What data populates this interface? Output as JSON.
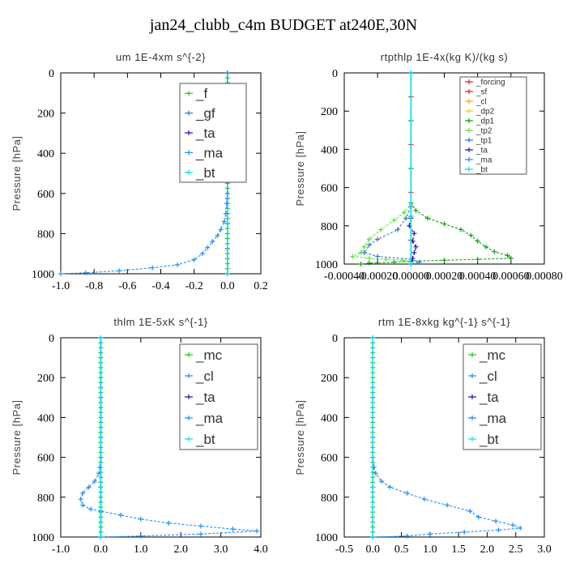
{
  "title": "jan24_clubb_c4m  BUDGET at240E,30N",
  "colors": {
    "green": "#22cc22",
    "blue": "#1e90ff",
    "darkblue": "#1c1cc8",
    "cyan": "#00e5ee",
    "red": "#e8231a",
    "orange": "#ffa500",
    "yellow": "#e6d020",
    "forestgreen": "#14a014",
    "lime": "#66dd44",
    "steel": "#3a78c8"
  },
  "chart_data": [
    {
      "type": "line",
      "title": "um   1E-4xm s^{-2}",
      "ylabel": "Pressure [hPa]",
      "xlim": [
        -1.0,
        0.2
      ],
      "ylim": [
        1000,
        0
      ],
      "xticks": [
        "-1.0",
        "-0.8",
        "-0.6",
        "-0.4",
        "-0.2",
        "0.0",
        "0.2"
      ],
      "yticks": [
        "0",
        "200",
        "400",
        "600",
        "800",
        "1000"
      ],
      "legend": {
        "position": "top-right",
        "size": "large"
      },
      "series": [
        {
          "name": "_f",
          "color_key": "green",
          "values": [
            [
              0.0,
              0
            ],
            [
              0.0,
              100
            ],
            [
              0.0,
              200
            ],
            [
              0.0,
              300
            ],
            [
              0.0,
              400
            ],
            [
              0.0,
              500
            ],
            [
              0.0,
              600
            ],
            [
              0.0,
              700
            ],
            [
              0.0,
              800
            ],
            [
              0.0,
              900
            ],
            [
              0.0,
              1000
            ]
          ]
        },
        {
          "name": "_gf",
          "color_key": "steel",
          "values": [
            [
              0.0,
              0
            ],
            [
              0.0,
              500
            ],
            [
              0.0,
              1000
            ]
          ]
        },
        {
          "name": "_ta",
          "color_key": "darkblue",
          "values": [
            [
              0.0,
              0
            ],
            [
              0.0,
              1000
            ]
          ]
        },
        {
          "name": "_ma",
          "color_key": "blue",
          "values": [
            [
              0.0,
              0
            ],
            [
              0.0,
              1000
            ]
          ]
        },
        {
          "name": "_bt",
          "color_key": "cyan",
          "values": [
            [
              0.0,
              0
            ],
            [
              0.0,
              1000
            ]
          ]
        },
        {
          "name": "",
          "color_key": "blue",
          "values": [
            [
              0.0,
              0
            ],
            [
              0.0,
              100
            ],
            [
              0.0,
              200
            ],
            [
              0.0,
              300
            ],
            [
              0.0,
              400
            ],
            [
              0.0,
              500
            ],
            [
              0.0,
              600
            ],
            [
              -0.005,
              650
            ],
            [
              -0.01,
              700
            ],
            [
              -0.02,
              740
            ],
            [
              -0.04,
              780
            ],
            [
              -0.06,
              810
            ],
            [
              -0.09,
              840
            ],
            [
              -0.12,
              870
            ],
            [
              -0.15,
              900
            ],
            [
              -0.2,
              930
            ],
            [
              -0.3,
              955
            ],
            [
              -0.45,
              970
            ],
            [
              -0.65,
              985
            ],
            [
              -0.85,
              995
            ],
            [
              -1.0,
              1000
            ]
          ]
        }
      ]
    },
    {
      "type": "line",
      "title": "rtpthlp   1E-4x(kg K)/(kg s)",
      "ylabel": "Pressure [hPa]",
      "xlim": [
        -0.0004,
        0.0008
      ],
      "ylim": [
        1000,
        0
      ],
      "xticks": [
        "-0.00040",
        "-0.00020",
        "0.00000",
        "0.00020",
        "0.00040",
        "0.00060",
        "0.00080"
      ],
      "yticks": [
        "0",
        "200",
        "400",
        "600",
        "800",
        "1000"
      ],
      "legend": {
        "position": "top-right",
        "size": "small"
      },
      "series": [
        {
          "name": "_forcing",
          "color_key": "red",
          "values": [
            [
              0.0,
              0
            ],
            [
              0.0,
              500
            ],
            [
              0.0,
              1000
            ]
          ]
        },
        {
          "name": "_sf",
          "color_key": "red",
          "values": [
            [
              0.0,
              0
            ],
            [
              0.0,
              1000
            ]
          ]
        },
        {
          "name": "_cl",
          "color_key": "orange",
          "values": [
            [
              0.0,
              0
            ],
            [
              0.0,
              1000
            ]
          ]
        },
        {
          "name": "_dp2",
          "color_key": "yellow",
          "values": [
            [
              0.0,
              0
            ],
            [
              0.0,
              1000
            ]
          ]
        },
        {
          "name": "_dp1",
          "color_key": "forestgreen",
          "values": [
            [
              0.0,
              0
            ],
            [
              0.0,
              680
            ],
            [
              3e-05,
              720
            ],
            [
              0.0001,
              760
            ],
            [
              0.0002,
              790
            ],
            [
              0.0003,
              820
            ],
            [
              0.00036,
              850
            ],
            [
              0.0004,
              880
            ],
            [
              0.00045,
              910
            ],
            [
              0.0005,
              935
            ],
            [
              0.00058,
              955
            ],
            [
              0.0006,
              970
            ],
            [
              0.0004,
              975
            ],
            [
              0.0002,
              980
            ],
            [
              0.0,
              985
            ],
            [
              -0.0001,
              990
            ],
            [
              -0.00025,
              995
            ],
            [
              -0.0003,
              1000
            ]
          ]
        },
        {
          "name": "_tp2",
          "color_key": "lime",
          "values": [
            [
              0.0,
              0
            ],
            [
              0.0,
              690
            ],
            [
              -4e-05,
              730
            ],
            [
              -0.0001,
              770
            ],
            [
              -0.00018,
              820
            ],
            [
              -0.00025,
              870
            ],
            [
              -0.00028,
              910
            ],
            [
              -0.0003,
              940
            ],
            [
              -0.00035,
              960
            ],
            [
              -0.00025,
              970
            ],
            [
              -0.00015,
              975
            ],
            [
              -5e-05,
              980
            ],
            [
              0.0,
              990
            ],
            [
              0.0,
              1000
            ]
          ]
        },
        {
          "name": "_tp1",
          "color_key": "steel",
          "values": [
            [
              0.0,
              0
            ],
            [
              0.0,
              700
            ],
            [
              -3e-05,
              760
            ],
            [
              -8e-05,
              820
            ],
            [
              -0.0002,
              870
            ],
            [
              -0.00025,
              900
            ],
            [
              -0.00028,
              940
            ],
            [
              -0.0002,
              960
            ],
            [
              0.0,
              975
            ],
            [
              5e-05,
              990
            ],
            [
              0.0,
              1000
            ]
          ]
        },
        {
          "name": "_ta",
          "color_key": "darkblue",
          "values": [
            [
              0.0,
              0
            ],
            [
              0.0,
              760
            ],
            [
              -1e-05,
              800
            ],
            [
              2e-05,
              840
            ],
            [
              1e-05,
              880
            ],
            [
              3e-05,
              910
            ],
            [
              2e-05,
              940
            ],
            [
              1e-05,
              970
            ],
            [
              0.0,
              1000
            ]
          ]
        },
        {
          "name": "_ma",
          "color_key": "blue",
          "values": [
            [
              0.0,
              0
            ],
            [
              0.0,
              1000
            ]
          ]
        },
        {
          "name": "_bt",
          "color_key": "cyan",
          "values": [
            [
              0.0,
              0
            ],
            [
              0.0,
              1000
            ]
          ]
        }
      ]
    },
    {
      "type": "line",
      "title": "thlm   1E-5xK  s^{-1}",
      "ylabel": "Pressure [hPa]",
      "xlim": [
        -1.0,
        4.0
      ],
      "ylim": [
        1000,
        0
      ],
      "xticks": [
        "-1.0",
        "0.0",
        "1.0",
        "2.0",
        "3.0",
        "4.0"
      ],
      "yticks": [
        "0",
        "200",
        "400",
        "600",
        "800",
        "1000"
      ],
      "legend": {
        "position": "top-right",
        "size": "large"
      },
      "series": [
        {
          "name": "_mc",
          "color_key": "green",
          "values": [
            [
              0.0,
              0
            ],
            [
              0.0,
              100
            ],
            [
              0.0,
              200
            ],
            [
              0.0,
              300
            ],
            [
              0.0,
              400
            ],
            [
              0.0,
              500
            ],
            [
              0.0,
              600
            ],
            [
              0.0,
              700
            ],
            [
              0.0,
              800
            ],
            [
              0.0,
              900
            ],
            [
              0.0,
              1000
            ]
          ]
        },
        {
          "name": "_cl",
          "color_key": "blue",
          "values": [
            [
              0.0,
              0
            ],
            [
              0.0,
              300
            ],
            [
              0.0,
              600
            ],
            [
              -0.02,
              650
            ],
            [
              -0.05,
              680
            ],
            [
              -0.15,
              720
            ],
            [
              -0.3,
              750
            ],
            [
              -0.45,
              780
            ],
            [
              -0.5,
              810
            ],
            [
              -0.45,
              840
            ],
            [
              -0.25,
              860
            ],
            [
              0.0,
              870
            ],
            [
              0.5,
              890
            ],
            [
              1.0,
              910
            ],
            [
              1.7,
              930
            ],
            [
              2.5,
              945
            ],
            [
              3.3,
              960
            ],
            [
              3.9,
              970
            ],
            [
              2.5,
              985
            ],
            [
              1.0,
              995
            ],
            [
              0.0,
              1000
            ]
          ]
        },
        {
          "name": "_ta",
          "color_key": "darkblue",
          "values": [
            [
              0.0,
              0
            ],
            [
              0.0,
              1000
            ]
          ]
        },
        {
          "name": "_ma",
          "color_key": "blue",
          "values": [
            [
              0.0,
              0
            ],
            [
              0.0,
              1000
            ]
          ]
        },
        {
          "name": "_bt",
          "color_key": "cyan",
          "values": [
            [
              0.0,
              0
            ],
            [
              0.0,
              1000
            ]
          ]
        }
      ]
    },
    {
      "type": "line",
      "title": "rtm   1E-8xkg kg^{-1} s^{-1}",
      "ylabel": "Pressure [hPa]",
      "xlim": [
        -0.5,
        3.0
      ],
      "ylim": [
        1000,
        0
      ],
      "xticks": [
        "-0.5",
        "0.0",
        "0.5",
        "1.0",
        "1.5",
        "2.0",
        "2.5",
        "3.0"
      ],
      "yticks": [
        "0",
        "200",
        "400",
        "600",
        "800",
        "1000"
      ],
      "legend": {
        "position": "top-right",
        "size": "large"
      },
      "series": [
        {
          "name": "_mc",
          "color_key": "green",
          "values": [
            [
              0.0,
              0
            ],
            [
              0.0,
              100
            ],
            [
              0.0,
              200
            ],
            [
              0.0,
              300
            ],
            [
              0.0,
              400
            ],
            [
              0.0,
              500
            ],
            [
              0.0,
              600
            ],
            [
              0.0,
              700
            ],
            [
              0.0,
              800
            ],
            [
              0.0,
              900
            ],
            [
              0.0,
              1000
            ]
          ]
        },
        {
          "name": "_cl",
          "color_key": "blue",
          "values": [
            [
              0.0,
              0
            ],
            [
              0.0,
              300
            ],
            [
              0.0,
              600
            ],
            [
              0.02,
              650
            ],
            [
              0.05,
              680
            ],
            [
              0.15,
              720
            ],
            [
              0.3,
              750
            ],
            [
              0.6,
              780
            ],
            [
              0.9,
              810
            ],
            [
              1.3,
              840
            ],
            [
              1.7,
              870
            ],
            [
              1.85,
              900
            ],
            [
              2.15,
              920
            ],
            [
              2.45,
              940
            ],
            [
              2.58,
              955
            ],
            [
              2.2,
              965
            ],
            [
              1.6,
              975
            ],
            [
              1.0,
              985
            ],
            [
              0.6,
              995
            ],
            [
              0.0,
              1000
            ]
          ]
        },
        {
          "name": "_ta",
          "color_key": "darkblue",
          "values": [
            [
              0.0,
              0
            ],
            [
              0.0,
              1000
            ]
          ]
        },
        {
          "name": "_ma",
          "color_key": "blue",
          "values": [
            [
              0.0,
              0
            ],
            [
              0.0,
              1000
            ]
          ]
        },
        {
          "name": "_bt",
          "color_key": "cyan",
          "values": [
            [
              0.0,
              0
            ],
            [
              0.0,
              1000
            ]
          ]
        }
      ]
    }
  ]
}
